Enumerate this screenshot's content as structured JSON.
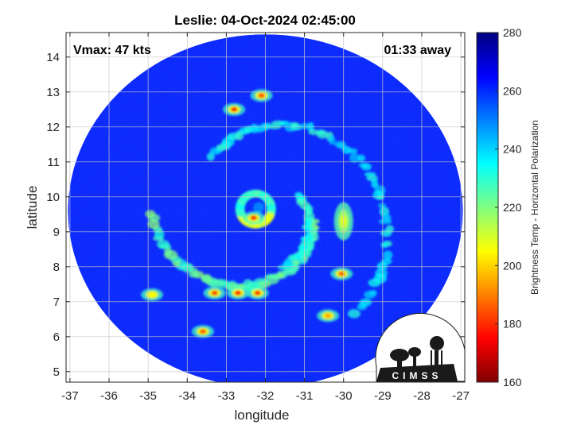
{
  "chart_data": {
    "type": "heatmap",
    "title": "Leslie: 04-Oct-2024 02:45:00",
    "xlabel": "longitude",
    "ylabel": "latitude",
    "xlim": [
      -37.1,
      -26.9
    ],
    "ylim": [
      4.7,
      14.7
    ],
    "xticks": [
      -37,
      -36,
      -35,
      -34,
      -33,
      -32,
      -31,
      -30,
      -29,
      -28,
      -27
    ],
    "yticks": [
      5,
      6,
      7,
      8,
      9,
      10,
      11,
      12,
      13,
      14
    ],
    "grid": true,
    "annotations": {
      "top_left": "Vmax: 47 kts",
      "top_right": "01:33 away"
    },
    "colorbar": {
      "label": "Brightness Temp - Horizontal Polarization",
      "range": [
        160,
        280
      ],
      "ticks": [
        160,
        180,
        200,
        220,
        240,
        260,
        280
      ],
      "colormap": [
        "#7f0000",
        "#ff0000",
        "#ff8000",
        "#ffff00",
        "#80ff80",
        "#00ffff",
        "#0080ff",
        "#0000ff",
        "#00007f"
      ]
    },
    "swath": {
      "center_lon": -32.0,
      "center_lat": 9.6,
      "radius_deg": 5.05,
      "background_temp": 262
    },
    "storm_center": {
      "lon": -32.2,
      "lat": 9.6
    },
    "features": [
      {
        "name": "eyewall",
        "lon": -32.25,
        "lat": 9.65,
        "radius": 0.4,
        "min_temp": 205
      },
      {
        "name": "eyewall-core",
        "lon": -32.3,
        "lat": 9.4,
        "min_temp": 178
      },
      {
        "name": "east-band",
        "lon": -30.0,
        "lat": 9.3,
        "min_temp": 208
      },
      {
        "name": "north-band-core",
        "lon": -32.8,
        "lat": 12.5,
        "min_temp": 178
      },
      {
        "name": "north-band-core-2",
        "lon": -32.1,
        "lat": 12.9,
        "min_temp": 182
      },
      {
        "name": "south-band-core",
        "lon": -32.7,
        "lat": 7.25,
        "min_temp": 176
      },
      {
        "name": "south-band-core-2",
        "lon": -32.2,
        "lat": 7.25,
        "min_temp": 180
      },
      {
        "name": "south-band-core-3",
        "lon": -33.3,
        "lat": 7.25,
        "min_temp": 182
      },
      {
        "name": "southeast-cell",
        "lon": -30.05,
        "lat": 7.8,
        "min_temp": 185
      },
      {
        "name": "southeast-cell-2",
        "lon": -30.4,
        "lat": 6.6,
        "min_temp": 195
      },
      {
        "name": "southwest-cell",
        "lon": -33.6,
        "lat": 6.15,
        "min_temp": 185
      },
      {
        "name": "west-cell",
        "lon": -34.9,
        "lat": 7.2,
        "min_temp": 205
      }
    ],
    "logo": "CIMSS"
  }
}
